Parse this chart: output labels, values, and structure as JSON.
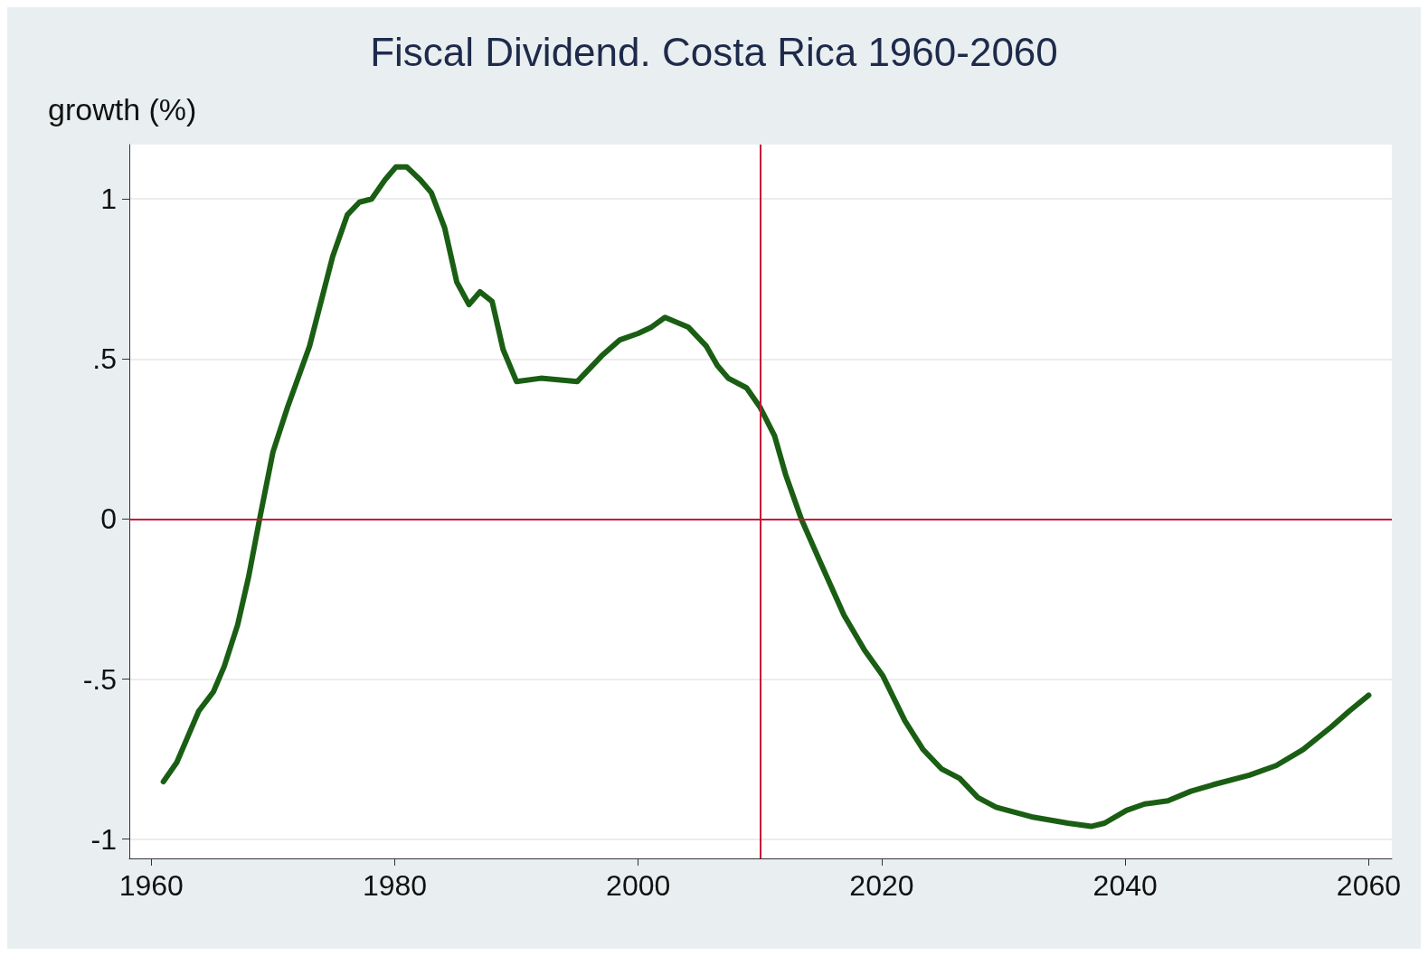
{
  "chart_data": {
    "type": "line",
    "title": "Fiscal Dividend. Costa Rica 1960-2060",
    "ylabel": "growth (%)",
    "xlim": [
      1958.2,
      2061.9
    ],
    "ylim": [
      -1.06,
      1.17
    ],
    "xticks": [
      1960,
      1980,
      2000,
      2020,
      2040,
      2060
    ],
    "yticks": [
      -1,
      {
        "value": -0.5,
        "label": "-.5"
      },
      0,
      {
        "value": 0.5,
        "label": ".5"
      },
      1
    ],
    "grid": "y",
    "marker": "none",
    "line_style": "solid",
    "ref_lines": [
      {
        "axis": "x",
        "value": 2010,
        "color": "#c8103c"
      },
      {
        "axis": "y",
        "value": 0,
        "color": "#c8103c"
      }
    ],
    "series": [
      {
        "color": "#1a5e14",
        "x": [
          1961.0,
          1962.1,
          1963.0,
          1963.9,
          1965.1,
          1966.0,
          1967.1,
          1968.0,
          1968.9,
          1970.0,
          1971.2,
          1973.0,
          1974.9,
          1976.1,
          1977.1,
          1978.1,
          1979.2,
          1980.1,
          1981.0,
          1982.1,
          1983.0,
          1984.1,
          1985.1,
          1986.1,
          1987.0,
          1988.0,
          1988.9,
          1990.0,
          1992.0,
          1995.0,
          1997.0,
          1998.5,
          2000.0,
          2001.1,
          2002.2,
          2004.1,
          2005.6,
          2006.5,
          2007.4,
          2008.9,
          2010.0,
          2011.2,
          2012.1,
          2013.4,
          2014.9,
          2016.9,
          2018.6,
          2020.1,
          2021.9,
          2023.4,
          2024.9,
          2026.4,
          2027.9,
          2029.4,
          2032.3,
          2035.3,
          2037.2,
          2038.3,
          2040.1,
          2041.6,
          2043.5,
          2045.4,
          2047.2,
          2050.2,
          2052.4,
          2054.6,
          2056.9,
          2058.4,
          2060.0
        ],
        "values": [
          -0.82,
          -0.76,
          -0.68,
          -0.6,
          -0.54,
          -0.46,
          -0.33,
          -0.18,
          0,
          0.21,
          0.35,
          0.54,
          0.82,
          0.95,
          0.99,
          1.0,
          1.06,
          1.1,
          1.1,
          1.06,
          1.02,
          0.91,
          0.74,
          0.67,
          0.71,
          0.68,
          0.53,
          0.43,
          0.44,
          0.43,
          0.51,
          0.56,
          0.58,
          0.6,
          0.63,
          0.6,
          0.54,
          0.48,
          0.44,
          0.41,
          0.35,
          0.26,
          0.14,
          0,
          -0.13,
          -0.3,
          -0.41,
          -0.49,
          -0.63,
          -0.72,
          -0.78,
          -0.81,
          -0.87,
          -0.9,
          -0.93,
          -0.95,
          -0.96,
          -0.95,
          -0.91,
          -0.89,
          -0.88,
          -0.85,
          -0.83,
          -0.8,
          -0.77,
          -0.72,
          -0.65,
          -0.6,
          -0.55
        ]
      }
    ]
  }
}
